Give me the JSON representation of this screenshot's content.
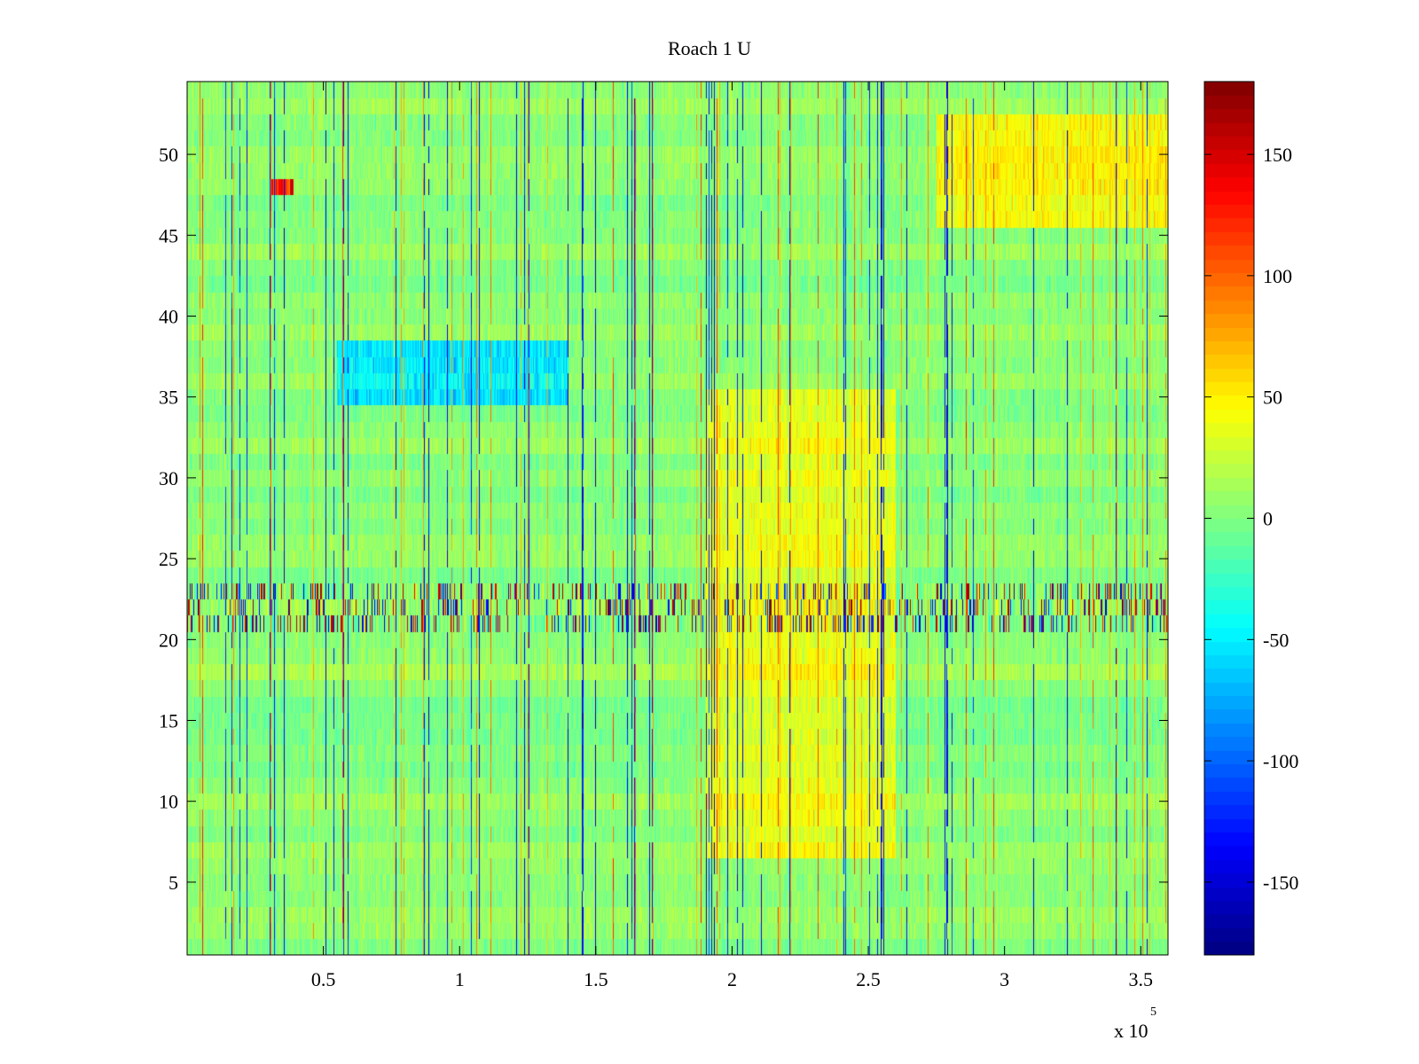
{
  "chart_data": {
    "type": "heatmap",
    "title": "Roach 1 U",
    "xlabel": "",
    "ylabel": "",
    "x_range": [
      0,
      360000
    ],
    "y_range": [
      0.5,
      54.5
    ],
    "rows": 54,
    "x_ticks": [
      0.5,
      1,
      1.5,
      2,
      2.5,
      3,
      3.5
    ],
    "x_tick_labels": [
      "0.5",
      "1",
      "1.5",
      "2",
      "2.5",
      "3",
      "3.5"
    ],
    "x_multiplier": {
      "base": "x 10",
      "exponent": "5"
    },
    "y_ticks": [
      5,
      10,
      15,
      20,
      25,
      30,
      35,
      40,
      45,
      50
    ],
    "colorbar": {
      "range": [
        -180,
        180
      ],
      "colormap": "jet",
      "ticks": [
        150,
        100,
        50,
        0,
        -50,
        -100,
        -150
      ],
      "tick_labels": [
        "150",
        "100",
        "50",
        "0",
        "-50",
        "-100",
        "-150"
      ]
    },
    "grid": false,
    "features": [
      {
        "label": "hot spot",
        "x_range": [
          31000,
          39000
        ],
        "row": 48,
        "value": 150
      },
      {
        "label": "warm band",
        "x_range": [
          190000,
          260000
        ],
        "rows": [
          7,
          35
        ],
        "value": 40
      },
      {
        "label": "cool band",
        "x_range": [
          55000,
          140000
        ],
        "rows": [
          35,
          38
        ],
        "value": -65
      },
      {
        "label": "striped rows",
        "rows": [
          21,
          23
        ],
        "value_range": [
          -150,
          150
        ]
      },
      {
        "label": "warm top rows",
        "x_range": [
          275000,
          360000
        ],
        "rows": [
          46,
          52
        ],
        "value": 50
      }
    ]
  }
}
